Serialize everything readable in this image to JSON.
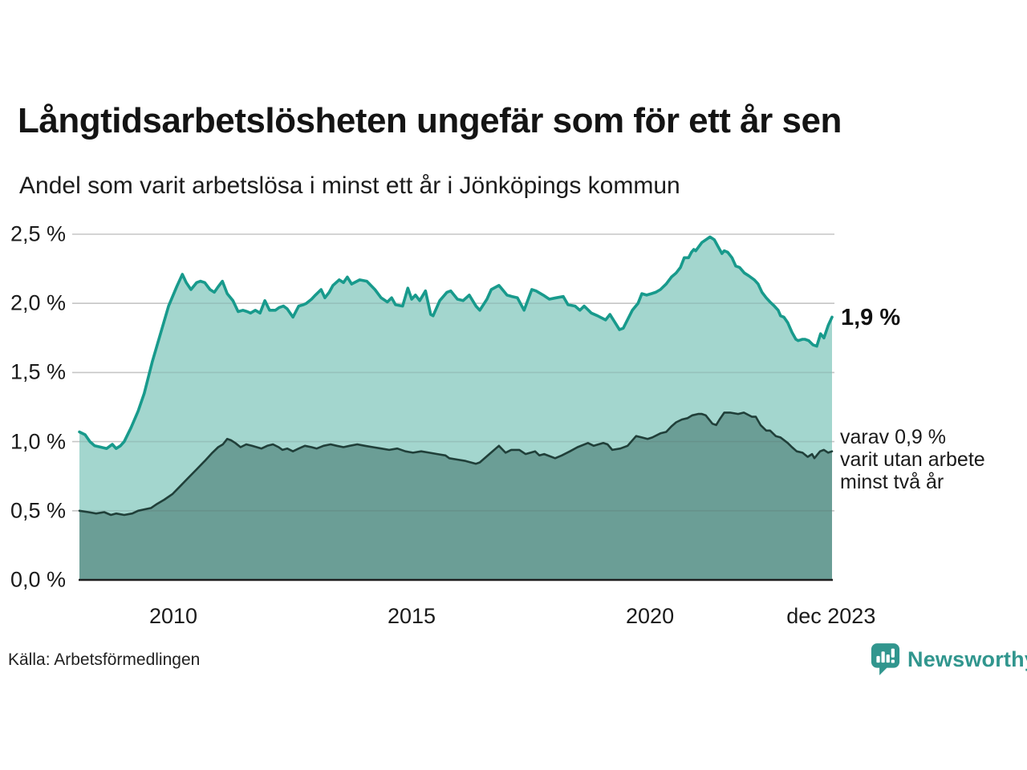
{
  "title": "Långtidsarbetslösheten ungefär som för ett år sen",
  "subtitle": "Andel som varit arbetslösa i minst ett år i Jönköpings kommun",
  "source": "Källa: Arbetsförmedlingen",
  "branding": {
    "name": "Newsworthy",
    "color": "#31968e"
  },
  "annotations": {
    "latest_total": "1,9 %",
    "latest_two_years": "varav 0,9 %\nvarit utan arbete\nminst två år"
  },
  "colors": {
    "total_line": "#189a8c",
    "total_fill": "#a3d6ce",
    "two_year_line": "#203f39",
    "two_year_fill": "#6b9e96",
    "gridline": "#dcdcdc",
    "axis": "#1f1f1f",
    "text": "#1a1a1a"
  },
  "chart_data": {
    "type": "area",
    "title": "Långtidsarbetslösheten ungefär som för ett år sen",
    "xlabel": "",
    "ylabel": "",
    "grid": "horizontal",
    "xlim": [
      2008.03,
      2023.82
    ],
    "ylim": [
      0,
      2.5
    ],
    "y_ticks": [
      {
        "label": "0,0 %",
        "value": 0.0
      },
      {
        "label": "0,5 %",
        "value": 0.5
      },
      {
        "label": "1,0 %",
        "value": 1.0
      },
      {
        "label": "1,5 %",
        "value": 1.5
      },
      {
        "label": "2,0 %",
        "value": 2.0
      },
      {
        "label": "2,5 %",
        "value": 2.5
      }
    ],
    "x_ticks": [
      {
        "label": "2010",
        "year": 2010
      },
      {
        "label": "2015",
        "year": 2015
      },
      {
        "label": "2020",
        "year": 2020
      },
      {
        "label": "dec 2023",
        "year": 2023.8
      }
    ],
    "latest": {
      "total_pct": 1.9,
      "two_years_pct": 0.9
    },
    "series": [
      {
        "name": "Andel som varit arbetslösa i minst ett år",
        "points": [
          [
            2008.03,
            1.07
          ],
          [
            2008.15,
            1.05
          ],
          [
            2008.25,
            1.0
          ],
          [
            2008.35,
            0.97
          ],
          [
            2008.48,
            0.96
          ],
          [
            2008.6,
            0.95
          ],
          [
            2008.72,
            0.98
          ],
          [
            2008.8,
            0.95
          ],
          [
            2008.89,
            0.97
          ],
          [
            2008.97,
            1.0
          ],
          [
            2009.11,
            1.1
          ],
          [
            2009.26,
            1.22
          ],
          [
            2009.39,
            1.35
          ],
          [
            2009.56,
            1.58
          ],
          [
            2009.73,
            1.78
          ],
          [
            2009.9,
            1.98
          ],
          [
            2010.07,
            2.12
          ],
          [
            2010.19,
            2.21
          ],
          [
            2010.27,
            2.15
          ],
          [
            2010.37,
            2.1
          ],
          [
            2010.49,
            2.15
          ],
          [
            2010.57,
            2.16
          ],
          [
            2010.66,
            2.15
          ],
          [
            2010.77,
            2.1
          ],
          [
            2010.86,
            2.08
          ],
          [
            2010.94,
            2.12
          ],
          [
            2011.03,
            2.16
          ],
          [
            2011.13,
            2.07
          ],
          [
            2011.25,
            2.02
          ],
          [
            2011.36,
            1.94
          ],
          [
            2011.46,
            1.95
          ],
          [
            2011.55,
            1.94
          ],
          [
            2011.62,
            1.93
          ],
          [
            2011.72,
            1.95
          ],
          [
            2011.82,
            1.93
          ],
          [
            2011.92,
            2.02
          ],
          [
            2012.02,
            1.95
          ],
          [
            2012.14,
            1.95
          ],
          [
            2012.22,
            1.97
          ],
          [
            2012.31,
            1.98
          ],
          [
            2012.39,
            1.96
          ],
          [
            2012.51,
            1.9
          ],
          [
            2012.63,
            1.98
          ],
          [
            2012.73,
            1.99
          ],
          [
            2012.79,
            2.0
          ],
          [
            2012.9,
            2.03
          ],
          [
            2012.98,
            2.06
          ],
          [
            2013.1,
            2.1
          ],
          [
            2013.18,
            2.04
          ],
          [
            2013.27,
            2.08
          ],
          [
            2013.35,
            2.13
          ],
          [
            2013.48,
            2.17
          ],
          [
            2013.57,
            2.15
          ],
          [
            2013.65,
            2.19
          ],
          [
            2013.74,
            2.14
          ],
          [
            2013.91,
            2.17
          ],
          [
            2014.06,
            2.16
          ],
          [
            2014.23,
            2.1
          ],
          [
            2014.36,
            2.04
          ],
          [
            2014.49,
            2.01
          ],
          [
            2014.58,
            2.04
          ],
          [
            2014.66,
            1.99
          ],
          [
            2014.81,
            1.98
          ],
          [
            2014.92,
            2.11
          ],
          [
            2015.0,
            2.03
          ],
          [
            2015.08,
            2.06
          ],
          [
            2015.17,
            2.02
          ],
          [
            2015.29,
            2.09
          ],
          [
            2015.4,
            1.92
          ],
          [
            2015.45,
            1.91
          ],
          [
            2015.59,
            2.02
          ],
          [
            2015.74,
            2.08
          ],
          [
            2015.82,
            2.09
          ],
          [
            2015.96,
            2.03
          ],
          [
            2016.08,
            2.02
          ],
          [
            2016.21,
            2.06
          ],
          [
            2016.35,
            1.98
          ],
          [
            2016.43,
            1.95
          ],
          [
            2016.58,
            2.03
          ],
          [
            2016.67,
            2.1
          ],
          [
            2016.83,
            2.13
          ],
          [
            2016.88,
            2.11
          ],
          [
            2017.0,
            2.06
          ],
          [
            2017.1,
            2.05
          ],
          [
            2017.22,
            2.04
          ],
          [
            2017.36,
            1.95
          ],
          [
            2017.52,
            2.1
          ],
          [
            2017.61,
            2.09
          ],
          [
            2017.76,
            2.06
          ],
          [
            2017.89,
            2.03
          ],
          [
            2018.03,
            2.04
          ],
          [
            2018.18,
            2.05
          ],
          [
            2018.28,
            1.99
          ],
          [
            2018.43,
            1.98
          ],
          [
            2018.53,
            1.95
          ],
          [
            2018.62,
            1.98
          ],
          [
            2018.77,
            1.93
          ],
          [
            2018.9,
            1.91
          ],
          [
            2019.07,
            1.88
          ],
          [
            2019.16,
            1.92
          ],
          [
            2019.36,
            1.81
          ],
          [
            2019.44,
            1.82
          ],
          [
            2019.63,
            1.95
          ],
          [
            2019.75,
            2.0
          ],
          [
            2019.83,
            2.07
          ],
          [
            2019.93,
            2.06
          ],
          [
            2020.03,
            2.07
          ],
          [
            2020.12,
            2.08
          ],
          [
            2020.22,
            2.1
          ],
          [
            2020.34,
            2.14
          ],
          [
            2020.45,
            2.19
          ],
          [
            2020.55,
            2.22
          ],
          [
            2020.64,
            2.26
          ],
          [
            2020.72,
            2.33
          ],
          [
            2020.81,
            2.33
          ],
          [
            2020.87,
            2.37
          ],
          [
            2020.92,
            2.39
          ],
          [
            2020.96,
            2.38
          ],
          [
            2021.09,
            2.44
          ],
          [
            2021.26,
            2.48
          ],
          [
            2021.35,
            2.46
          ],
          [
            2021.43,
            2.41
          ],
          [
            2021.51,
            2.36
          ],
          [
            2021.56,
            2.38
          ],
          [
            2021.63,
            2.37
          ],
          [
            2021.72,
            2.33
          ],
          [
            2021.8,
            2.27
          ],
          [
            2021.88,
            2.26
          ],
          [
            2021.98,
            2.22
          ],
          [
            2022.07,
            2.2
          ],
          [
            2022.19,
            2.17
          ],
          [
            2022.27,
            2.14
          ],
          [
            2022.35,
            2.08
          ],
          [
            2022.44,
            2.04
          ],
          [
            2022.52,
            2.01
          ],
          [
            2022.61,
            1.98
          ],
          [
            2022.69,
            1.95
          ],
          [
            2022.74,
            1.91
          ],
          [
            2022.81,
            1.9
          ],
          [
            2022.89,
            1.86
          ],
          [
            2022.98,
            1.79
          ],
          [
            2023.06,
            1.74
          ],
          [
            2023.11,
            1.73
          ],
          [
            2023.2,
            1.74
          ],
          [
            2023.25,
            1.74
          ],
          [
            2023.33,
            1.73
          ],
          [
            2023.42,
            1.7
          ],
          [
            2023.5,
            1.69
          ],
          [
            2023.58,
            1.78
          ],
          [
            2023.65,
            1.75
          ],
          [
            2023.74,
            1.84
          ],
          [
            2023.82,
            1.9
          ]
        ]
      },
      {
        "name": "varav utan arbete minst två år",
        "points": [
          [
            2008.03,
            0.5
          ],
          [
            2008.22,
            0.49
          ],
          [
            2008.38,
            0.48
          ],
          [
            2008.55,
            0.49
          ],
          [
            2008.69,
            0.47
          ],
          [
            2008.8,
            0.48
          ],
          [
            2008.97,
            0.47
          ],
          [
            2009.14,
            0.48
          ],
          [
            2009.26,
            0.5
          ],
          [
            2009.39,
            0.51
          ],
          [
            2009.53,
            0.52
          ],
          [
            2009.66,
            0.55
          ],
          [
            2009.81,
            0.58
          ],
          [
            2009.98,
            0.62
          ],
          [
            2010.15,
            0.68
          ],
          [
            2010.32,
            0.74
          ],
          [
            2010.49,
            0.8
          ],
          [
            2010.66,
            0.86
          ],
          [
            2010.82,
            0.92
          ],
          [
            2010.94,
            0.96
          ],
          [
            2011.04,
            0.98
          ],
          [
            2011.13,
            1.02
          ],
          [
            2011.21,
            1.01
          ],
          [
            2011.3,
            0.99
          ],
          [
            2011.41,
            0.96
          ],
          [
            2011.53,
            0.98
          ],
          [
            2011.65,
            0.97
          ],
          [
            2011.75,
            0.96
          ],
          [
            2011.85,
            0.95
          ],
          [
            2011.97,
            0.97
          ],
          [
            2012.09,
            0.98
          ],
          [
            2012.21,
            0.96
          ],
          [
            2012.29,
            0.94
          ],
          [
            2012.39,
            0.95
          ],
          [
            2012.51,
            0.93
          ],
          [
            2012.63,
            0.95
          ],
          [
            2012.76,
            0.97
          ],
          [
            2012.9,
            0.96
          ],
          [
            2013.01,
            0.95
          ],
          [
            2013.15,
            0.97
          ],
          [
            2013.3,
            0.98
          ],
          [
            2013.43,
            0.97
          ],
          [
            2013.57,
            0.96
          ],
          [
            2013.7,
            0.97
          ],
          [
            2013.86,
            0.98
          ],
          [
            2014.02,
            0.97
          ],
          [
            2014.19,
            0.96
          ],
          [
            2014.36,
            0.95
          ],
          [
            2014.53,
            0.94
          ],
          [
            2014.7,
            0.95
          ],
          [
            2014.87,
            0.93
          ],
          [
            2015.03,
            0.92
          ],
          [
            2015.2,
            0.93
          ],
          [
            2015.37,
            0.92
          ],
          [
            2015.54,
            0.91
          ],
          [
            2015.71,
            0.9
          ],
          [
            2015.79,
            0.88
          ],
          [
            2015.96,
            0.87
          ],
          [
            2016.13,
            0.86
          ],
          [
            2016.35,
            0.84
          ],
          [
            2016.43,
            0.85
          ],
          [
            2016.63,
            0.91
          ],
          [
            2016.83,
            0.97
          ],
          [
            2016.97,
            0.92
          ],
          [
            2017.09,
            0.94
          ],
          [
            2017.26,
            0.94
          ],
          [
            2017.39,
            0.91
          ],
          [
            2017.59,
            0.93
          ],
          [
            2017.68,
            0.9
          ],
          [
            2017.78,
            0.91
          ],
          [
            2018.01,
            0.88
          ],
          [
            2018.15,
            0.9
          ],
          [
            2018.32,
            0.93
          ],
          [
            2018.48,
            0.96
          ],
          [
            2018.7,
            0.99
          ],
          [
            2018.82,
            0.97
          ],
          [
            2019.02,
            0.99
          ],
          [
            2019.11,
            0.98
          ],
          [
            2019.21,
            0.94
          ],
          [
            2019.38,
            0.95
          ],
          [
            2019.53,
            0.97
          ],
          [
            2019.71,
            1.04
          ],
          [
            2019.83,
            1.03
          ],
          [
            2019.95,
            1.02
          ],
          [
            2020.05,
            1.03
          ],
          [
            2020.22,
            1.06
          ],
          [
            2020.34,
            1.07
          ],
          [
            2020.45,
            1.11
          ],
          [
            2020.55,
            1.14
          ],
          [
            2020.67,
            1.16
          ],
          [
            2020.79,
            1.17
          ],
          [
            2020.89,
            1.19
          ],
          [
            2021.01,
            1.2
          ],
          [
            2021.09,
            1.2
          ],
          [
            2021.17,
            1.19
          ],
          [
            2021.31,
            1.13
          ],
          [
            2021.39,
            1.12
          ],
          [
            2021.46,
            1.16
          ],
          [
            2021.56,
            1.21
          ],
          [
            2021.68,
            1.21
          ],
          [
            2021.85,
            1.2
          ],
          [
            2021.97,
            1.21
          ],
          [
            2022.14,
            1.18
          ],
          [
            2022.22,
            1.18
          ],
          [
            2022.32,
            1.12
          ],
          [
            2022.44,
            1.08
          ],
          [
            2022.52,
            1.08
          ],
          [
            2022.64,
            1.04
          ],
          [
            2022.74,
            1.03
          ],
          [
            2022.89,
            0.99
          ],
          [
            2022.98,
            0.96
          ],
          [
            2023.08,
            0.93
          ],
          [
            2023.2,
            0.92
          ],
          [
            2023.31,
            0.89
          ],
          [
            2023.4,
            0.91
          ],
          [
            2023.45,
            0.88
          ],
          [
            2023.57,
            0.93
          ],
          [
            2023.65,
            0.94
          ],
          [
            2023.74,
            0.92
          ],
          [
            2023.82,
            0.93
          ]
        ]
      }
    ]
  }
}
